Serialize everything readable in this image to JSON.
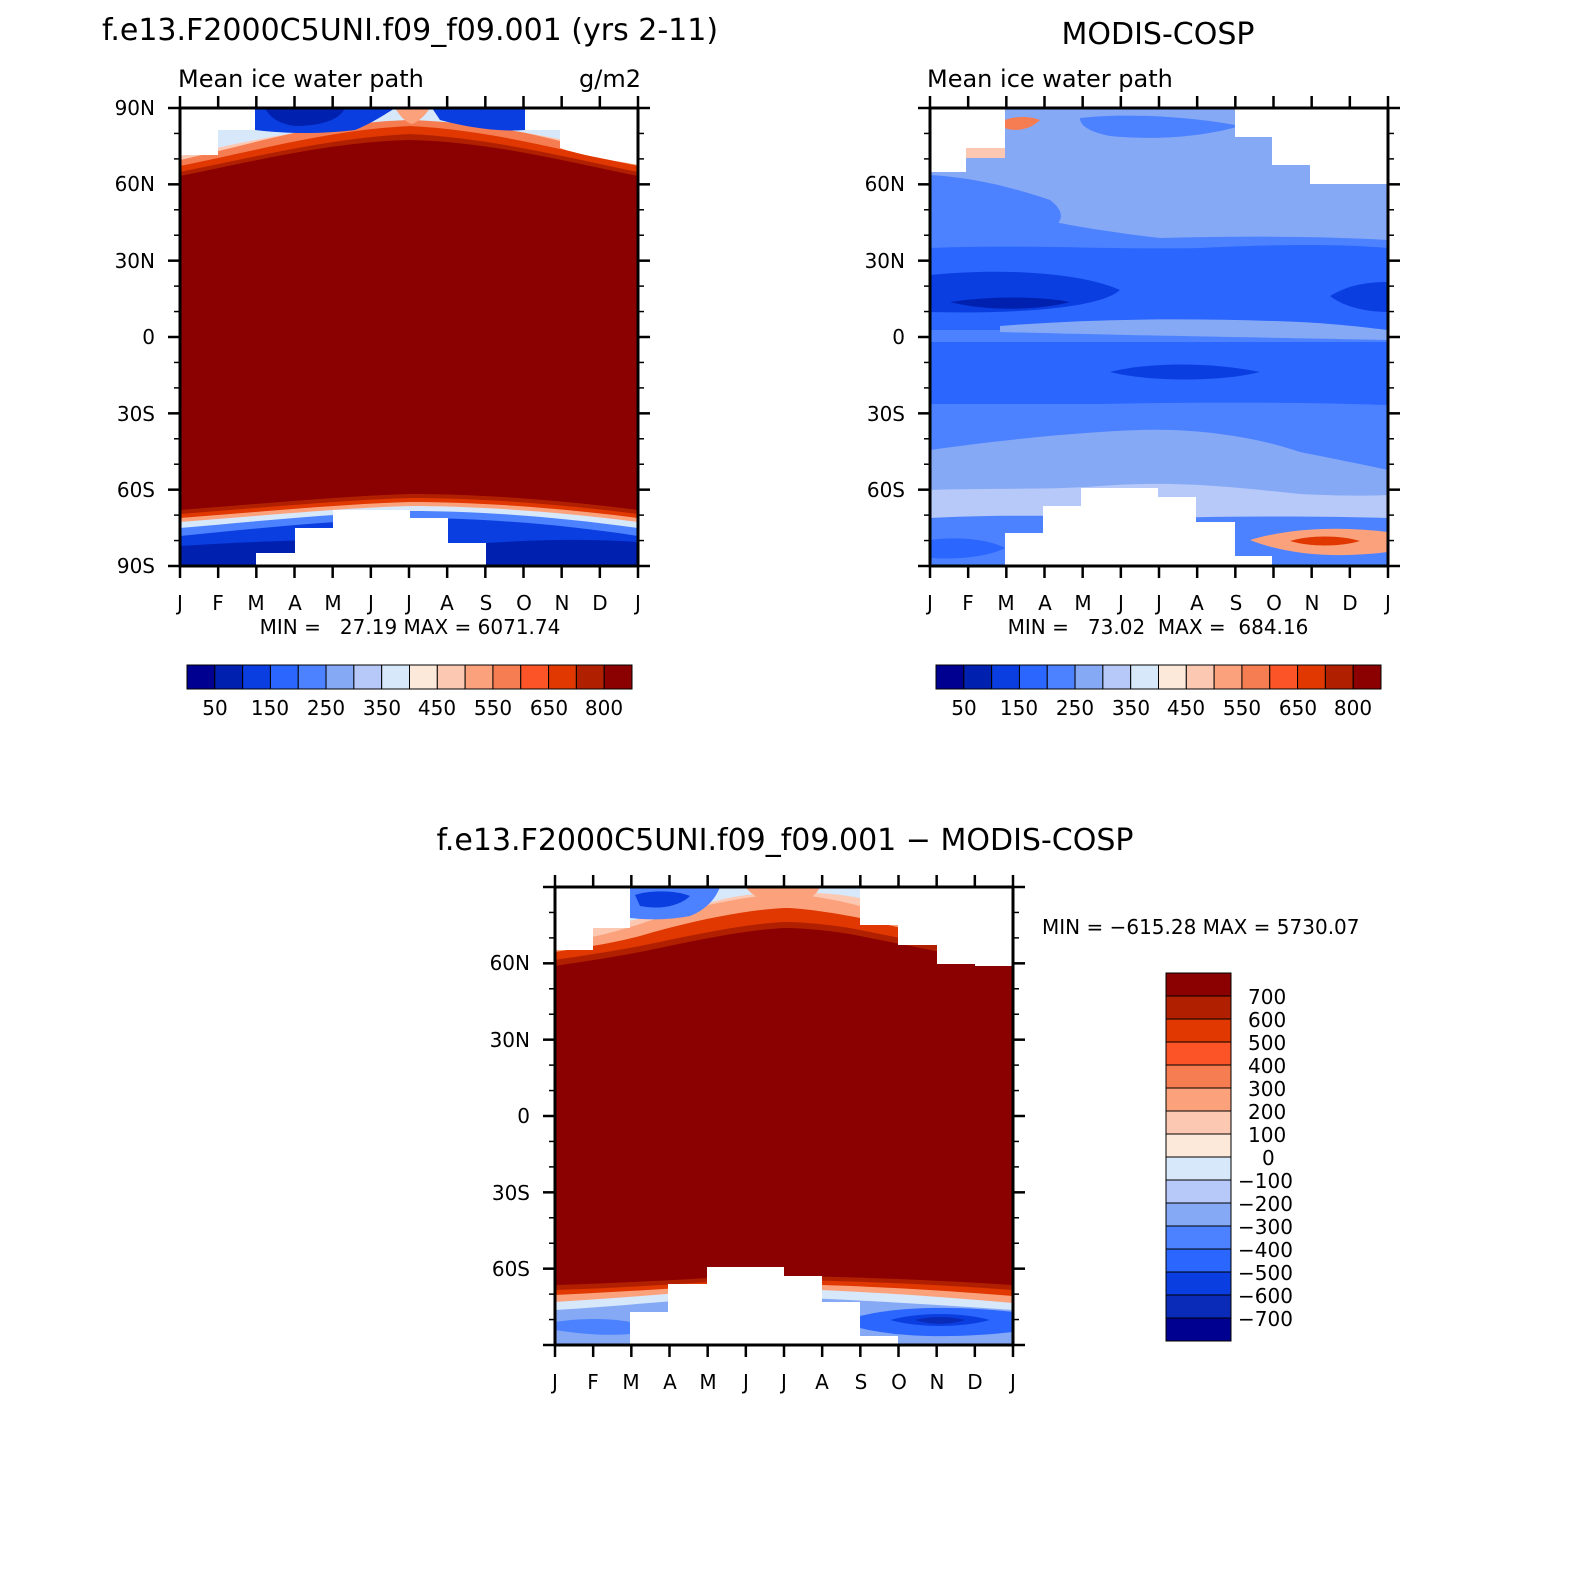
{
  "figure": {
    "palette_zonal": [
      "#000090",
      "#0020b0",
      "#0a3ee0",
      "#2b66ff",
      "#4c82ff",
      "#86a9f6",
      "#b6c9f8",
      "#d7e8fb",
      "#fde9da",
      "#fcc8b2",
      "#fba27d",
      "#f67c52",
      "#fc5426",
      "#e03800",
      "#b02000",
      "#8b0000"
    ],
    "palette_diff": [
      "#000090",
      "#0a2bb8",
      "#0a3ee0",
      "#2b66ff",
      "#4c82ff",
      "#86a9f6",
      "#b6c9f8",
      "#d7e8fb",
      "#fde9da",
      "#fcc8b2",
      "#fba27d",
      "#f67c52",
      "#fc5426",
      "#e03800",
      "#b02000",
      "#8b0000"
    ]
  },
  "chart_data": [
    {
      "id": "model",
      "type": "heatmap",
      "title": "f.e13.F2000C5UNI.f09_f09.001 (yrs 2-11)",
      "left_label": "Mean ice water path",
      "right_label": "g/m2",
      "x_ticks": [
        "J",
        "F",
        "M",
        "A",
        "M",
        "J",
        "J",
        "A",
        "S",
        "O",
        "N",
        "D",
        "J"
      ],
      "y_ticks": [
        "90N",
        "60N",
        "30N",
        "0",
        "30S",
        "60S",
        "90S"
      ],
      "ylim": [
        -90,
        90
      ],
      "stats": "MIN =   27.19 MAX = 6071.74",
      "colorbar_levels": [
        50,
        100,
        150,
        200,
        250,
        300,
        350,
        400,
        450,
        500,
        550,
        600,
        650,
        700,
        800
      ],
      "colorbar_labels": [
        "50",
        "150",
        "250",
        "350",
        "450",
        "550",
        "650",
        "800"
      ],
      "summary": [
        {
          "region": "60S-60N, all months",
          "value": ">800"
        },
        {
          "region": "65N-90N, Jun-Aug",
          "value": "~550-700"
        },
        {
          "region": "70N-90N, Mar-Apr and Sep",
          "value": "~50-150"
        },
        {
          "region": "70S-90S, all months",
          "value": "~50-150"
        }
      ]
    },
    {
      "id": "obs",
      "type": "heatmap",
      "title": "MODIS-COSP",
      "left_label": "Mean ice water path",
      "right_label": "",
      "x_ticks": [
        "J",
        "F",
        "M",
        "A",
        "M",
        "J",
        "J",
        "A",
        "S",
        "O",
        "N",
        "D",
        "J"
      ],
      "y_ticks": [
        "60N",
        "30N",
        "0",
        "30S",
        "60S"
      ],
      "ylim": [
        -90,
        90
      ],
      "stats": "MIN =   73.02  MAX =  684.16",
      "colorbar_levels": [
        50,
        100,
        150,
        200,
        250,
        300,
        350,
        400,
        450,
        500,
        550,
        600,
        650,
        700,
        800
      ],
      "colorbar_labels": [
        "50",
        "150",
        "250",
        "350",
        "450",
        "550",
        "650",
        "800"
      ],
      "summary": [
        {
          "region": "10N-20N, Jan-Mar",
          "value": "~50-100"
        },
        {
          "region": "0-20N, all months",
          "value": "~150-250"
        },
        {
          "region": "30N-60N, Apr-Dec",
          "value": "~300-350"
        },
        {
          "region": "70S-80S, Oct-Dec",
          "value": "~550-684"
        }
      ]
    },
    {
      "id": "diff",
      "type": "heatmap",
      "title": "f.e13.F2000C5UNI.f09_f09.001 − MODIS-COSP",
      "x_ticks": [
        "J",
        "F",
        "M",
        "A",
        "M",
        "J",
        "J",
        "A",
        "S",
        "O",
        "N",
        "D",
        "J"
      ],
      "y_ticks": [
        "60N",
        "30N",
        "0",
        "30S",
        "60S"
      ],
      "ylim": [
        -90,
        90
      ],
      "stats": "MIN = −615.28 MAX = 5730.07",
      "colorbar_levels": [
        -700,
        -600,
        -500,
        -400,
        -300,
        -200,
        -100,
        0,
        100,
        200,
        300,
        400,
        500,
        600,
        700
      ],
      "colorbar_labels": [
        "700",
        "600",
        "500",
        "400",
        "300",
        "200",
        "100",
        "0",
        "−100",
        "−200",
        "−300",
        "−400",
        "−500",
        "−600",
        "−700"
      ],
      "summary": [
        {
          "region": "60S-60N, all months",
          "value": ">700"
        },
        {
          "region": "75S-80S, Oct-Dec",
          "value": "~-600"
        },
        {
          "region": "80N-90N, Mar-Apr",
          "value": "~-400"
        }
      ]
    }
  ]
}
